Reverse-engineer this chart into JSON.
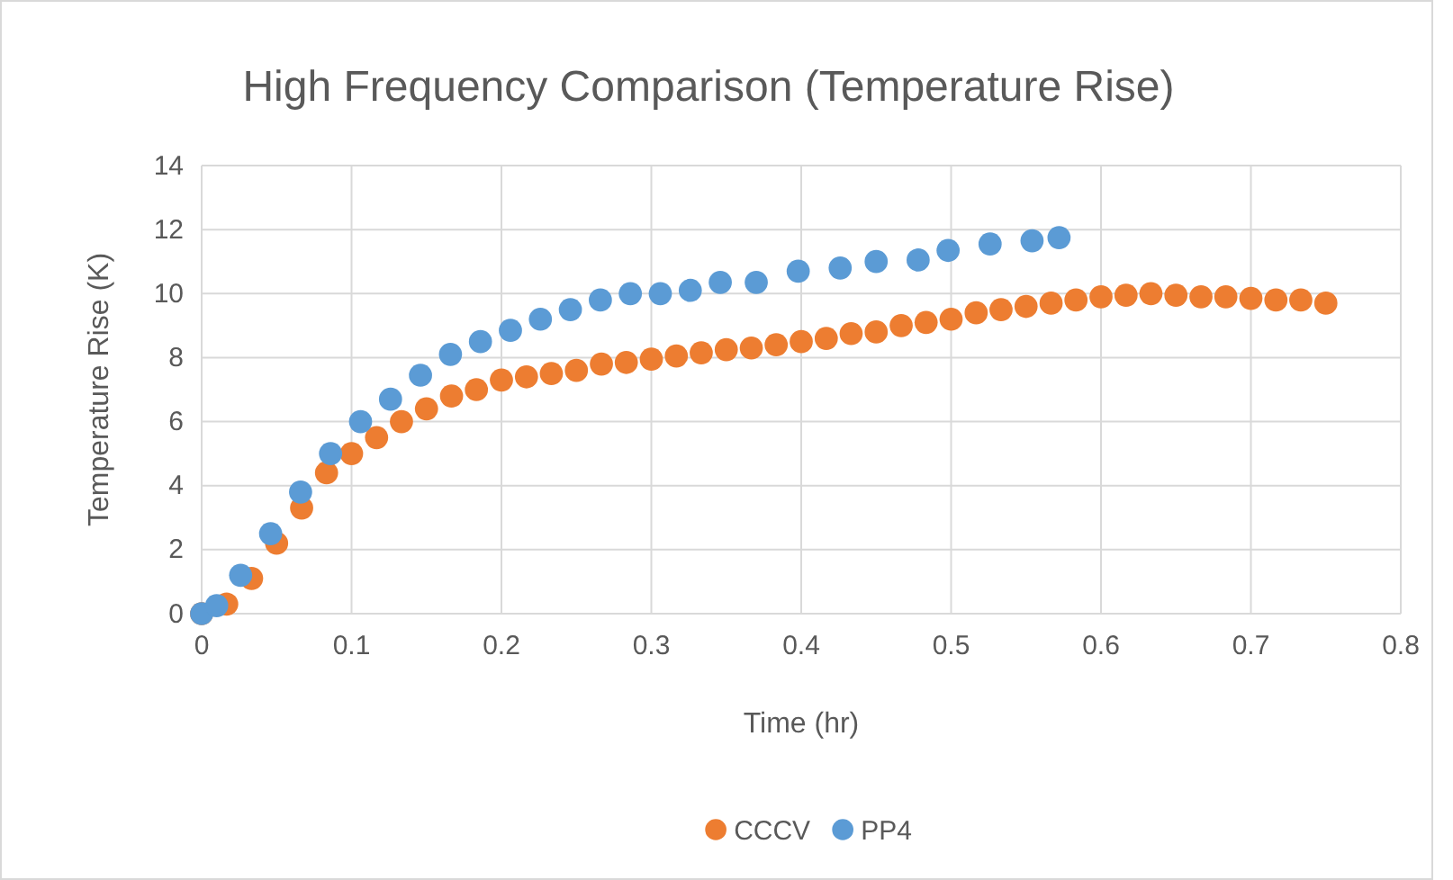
{
  "chart_data": {
    "type": "scatter",
    "title": "High Frequency Comparison (Temperature Rise)",
    "xlabel": "Time (hr)",
    "ylabel": "Temperature Rise (K)",
    "xlim": [
      0,
      0.8
    ],
    "xticks": [
      0,
      0.1,
      0.2,
      0.3,
      0.4,
      0.5,
      0.6,
      0.7,
      0.8
    ],
    "ylim": [
      0,
      14
    ],
    "yticks": [
      0,
      2,
      4,
      6,
      8,
      10,
      12,
      14
    ],
    "grid": true,
    "legend": "bottom",
    "marker": "circle",
    "series": [
      {
        "name": "CCCV",
        "color": "#ed7d31",
        "x": [
          0,
          0.0167,
          0.0333,
          0.05,
          0.0667,
          0.0833,
          0.1,
          0.1167,
          0.1333,
          0.15,
          0.1667,
          0.1833,
          0.2,
          0.2167,
          0.2333,
          0.25,
          0.2667,
          0.2833,
          0.3,
          0.3167,
          0.3333,
          0.35,
          0.3667,
          0.3833,
          0.4,
          0.4167,
          0.4333,
          0.45,
          0.4667,
          0.4833,
          0.5,
          0.5167,
          0.5333,
          0.55,
          0.5667,
          0.5833,
          0.6,
          0.6167,
          0.6333,
          0.65,
          0.6667,
          0.6833,
          0.7,
          0.7167,
          0.7333,
          0.75
        ],
        "values": [
          0,
          0.3,
          1.1,
          2.2,
          3.3,
          4.4,
          5.0,
          5.5,
          6.0,
          6.4,
          6.8,
          7.0,
          7.3,
          7.4,
          7.5,
          7.6,
          7.8,
          7.85,
          7.95,
          8.05,
          8.15,
          8.25,
          8.3,
          8.4,
          8.5,
          8.6,
          8.75,
          8.8,
          9.0,
          9.1,
          9.2,
          9.4,
          9.5,
          9.6,
          9.7,
          9.8,
          9.9,
          9.95,
          10.0,
          9.95,
          9.9,
          9.9,
          9.85,
          9.8,
          9.8,
          9.7
        ]
      },
      {
        "name": "PP4",
        "color": "#5b9bd5",
        "x": [
          0,
          0.01,
          0.026,
          0.046,
          0.066,
          0.086,
          0.106,
          0.126,
          0.146,
          0.166,
          0.186,
          0.206,
          0.226,
          0.246,
          0.266,
          0.286,
          0.306,
          0.326,
          0.346,
          0.37,
          0.398,
          0.426,
          0.45,
          0.478,
          0.498,
          0.526,
          0.554,
          0.572
        ],
        "values": [
          0,
          0.25,
          1.2,
          2.5,
          3.8,
          5.0,
          6.0,
          6.7,
          7.45,
          8.1,
          8.5,
          8.85,
          9.2,
          9.5,
          9.8,
          10.0,
          10.0,
          10.1,
          10.35,
          10.35,
          10.7,
          10.8,
          11.0,
          11.05,
          11.35,
          11.55,
          11.65,
          11.75
        ]
      }
    ]
  }
}
